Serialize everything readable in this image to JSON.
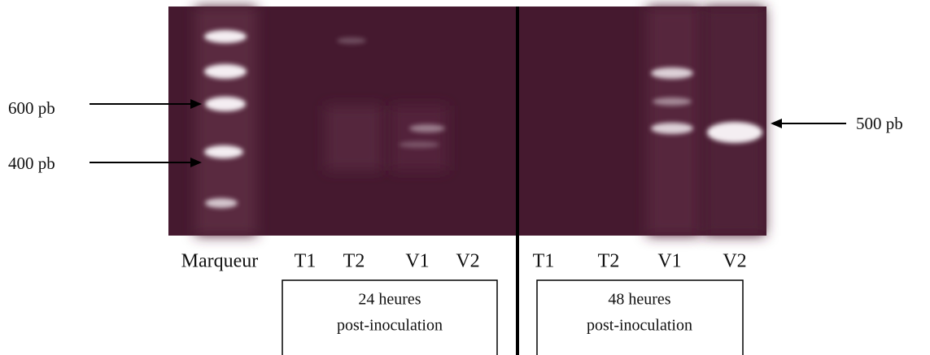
{
  "size_labels": {
    "left": [
      "600 pb",
      "400 pb"
    ],
    "right": "500 pb"
  },
  "lanes": [
    "Marqueur",
    "T1",
    "T2",
    "V1",
    "V2",
    "T1",
    "T2",
    "V1",
    "V2"
  ],
  "groups": [
    {
      "lines": [
        "24 heures",
        "post-inoculation"
      ]
    },
    {
      "lines": [
        "48 heures",
        "post-inoculation"
      ]
    }
  ]
}
